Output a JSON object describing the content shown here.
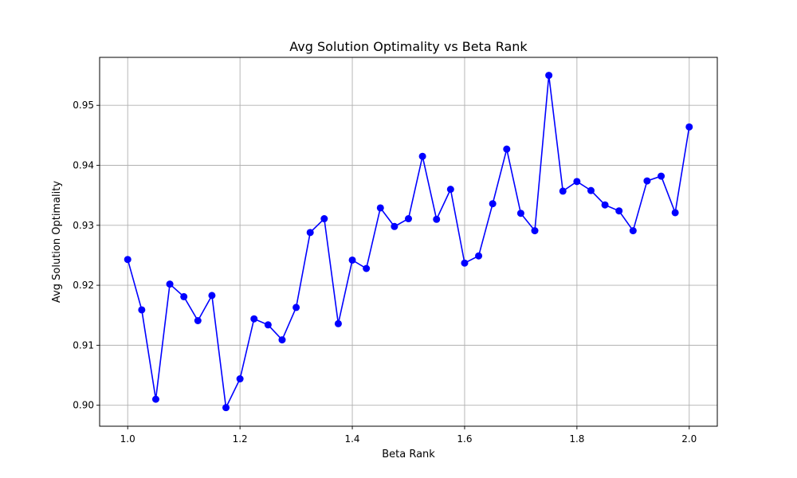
{
  "chart_data": {
    "type": "line",
    "title": "Avg Solution Optimality vs Beta Rank",
    "xlabel": "Beta Rank",
    "ylabel": "Avg Solution Optimality",
    "xlim": [
      0.95,
      2.05
    ],
    "ylim": [
      0.8965,
      0.958
    ],
    "x_ticks": [
      1.0,
      1.2,
      1.4,
      1.6,
      1.8,
      2.0
    ],
    "x_tick_labels": [
      "1.0",
      "1.2",
      "1.4",
      "1.6",
      "1.8",
      "2.0"
    ],
    "y_ticks": [
      0.9,
      0.91,
      0.92,
      0.93,
      0.94,
      0.95
    ],
    "y_tick_labels": [
      "0.90",
      "0.91",
      "0.92",
      "0.93",
      "0.94",
      "0.95"
    ],
    "grid": true,
    "color": "#0000ff",
    "marker": "circle",
    "series": [
      {
        "x": [
          1.0,
          1.025,
          1.05,
          1.075,
          1.1,
          1.125,
          1.15,
          1.175,
          1.2,
          1.225,
          1.25,
          1.275,
          1.3,
          1.325,
          1.35,
          1.375,
          1.4,
          1.425,
          1.45,
          1.475,
          1.5,
          1.525,
          1.55,
          1.575,
          1.6,
          1.625,
          1.65,
          1.675,
          1.7,
          1.725,
          1.75,
          1.775,
          1.8,
          1.825,
          1.85,
          1.875,
          1.9,
          1.925,
          1.95,
          1.975,
          2.0
        ],
        "values": [
          0.9243,
          0.9159,
          0.901,
          0.9202,
          0.9181,
          0.9141,
          0.9183,
          0.8996,
          0.9044,
          0.9144,
          0.9134,
          0.9109,
          0.9163,
          0.9288,
          0.9311,
          0.9136,
          0.9242,
          0.9228,
          0.9329,
          0.9298,
          0.9311,
          0.9415,
          0.931,
          0.936,
          0.9237,
          0.9249,
          0.9336,
          0.9427,
          0.932,
          0.9291,
          0.955,
          0.9357,
          0.9373,
          0.9358,
          0.9334,
          0.9324,
          0.9291,
          0.9374,
          0.9382,
          0.9321,
          0.9464
        ]
      }
    ]
  }
}
